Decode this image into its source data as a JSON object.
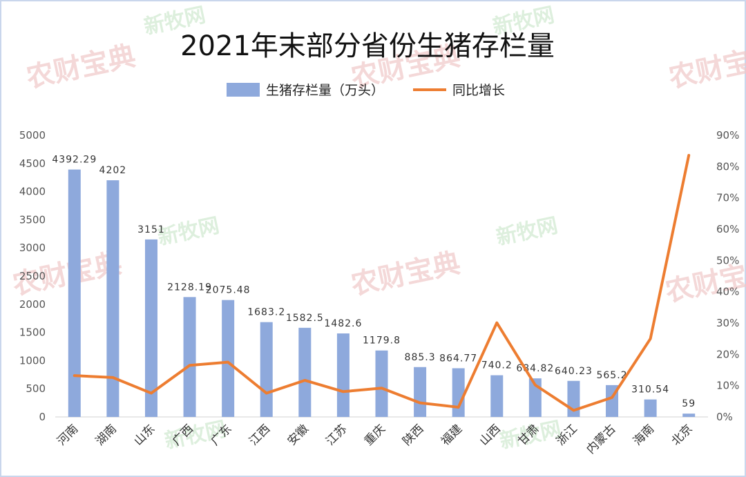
{
  "chart_data": {
    "type": "bar",
    "title": "2021年末部分省份生猪存栏量",
    "categories": [
      "河南",
      "湖南",
      "山东",
      "广西",
      "广东",
      "江西",
      "安徽",
      "江苏",
      "重庆",
      "陕西",
      "福建",
      "山西",
      "甘肃",
      "浙江",
      "内蒙古",
      "海南",
      "北京"
    ],
    "series": [
      {
        "name": "生猪存栏量（万头）",
        "type": "bar",
        "axis": "left",
        "color": "#8ea9dc",
        "values": [
          4392.29,
          4202,
          3151,
          2128.19,
          2075.48,
          1683.2,
          1582.5,
          1482.6,
          1179.8,
          885.3,
          864.77,
          740.2,
          684.82,
          640.23,
          565.2,
          310.54,
          59
        ],
        "labels": [
          "4392.29",
          "4202",
          "3151",
          "2128.19",
          "2075.48",
          "1683.2",
          "1582.5",
          "1482.6",
          "1179.8",
          "885.3",
          "864.77",
          "740.2",
          "684.82",
          "640.23",
          "565.2",
          "310.54",
          "59"
        ]
      },
      {
        "name": "同比增长",
        "type": "line",
        "axis": "right",
        "color": "#ed7d31",
        "values": [
          13.2,
          12.6,
          7.6,
          16.5,
          17.5,
          7.6,
          11.7,
          8.1,
          9.2,
          4.5,
          3.1,
          30.1,
          10.2,
          2.1,
          6.2,
          25.0,
          83.6
        ]
      }
    ],
    "y_left": {
      "min": 0,
      "max": 5000,
      "step": 500,
      "ticks": [
        "0",
        "500",
        "1000",
        "1500",
        "2000",
        "2500",
        "3000",
        "3500",
        "4000",
        "4500",
        "5000"
      ]
    },
    "y_right": {
      "min": 0,
      "max": 90,
      "step": 10,
      "ticks": [
        "0%",
        "10%",
        "20%",
        "30%",
        "40%",
        "50%",
        "60%",
        "70%",
        "80%",
        "90%"
      ]
    },
    "legend": "top-center",
    "grid": false
  },
  "watermarks": [
    "农财宝典",
    "新牧网"
  ]
}
